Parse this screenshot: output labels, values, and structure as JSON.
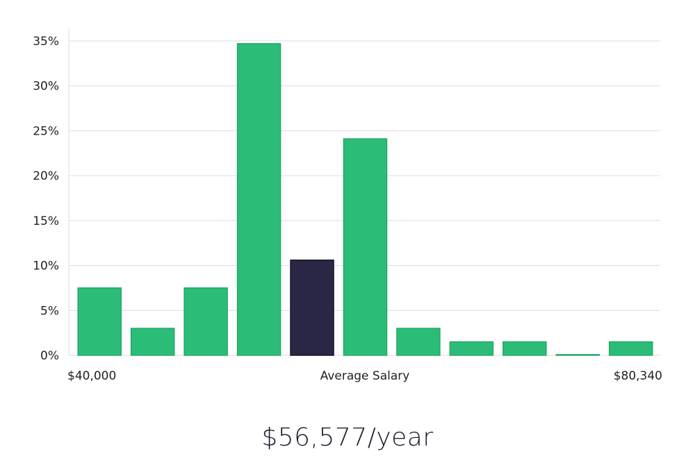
{
  "chart_data": {
    "type": "bar",
    "title": "",
    "xlabel": "Average Salary",
    "ylabel": "",
    "x_min_label": "$40,000",
    "x_max_label": "$80,340",
    "yticks": [
      "0%",
      "5%",
      "10%",
      "15%",
      "20%",
      "25%",
      "30%",
      "35%"
    ],
    "ylim": [
      0,
      35
    ],
    "values": [
      7.5,
      3.0,
      7.5,
      34.7,
      10.6,
      24.1,
      3.0,
      1.5,
      1.5,
      0.05,
      1.5
    ],
    "highlight_index": 4,
    "colors": {
      "bar": "#2bbd77",
      "bar_edge": "#20a866",
      "highlight": "#2a2746",
      "grid": "#dcdcdc"
    }
  },
  "salary": {
    "value": "$56,577/year"
  }
}
